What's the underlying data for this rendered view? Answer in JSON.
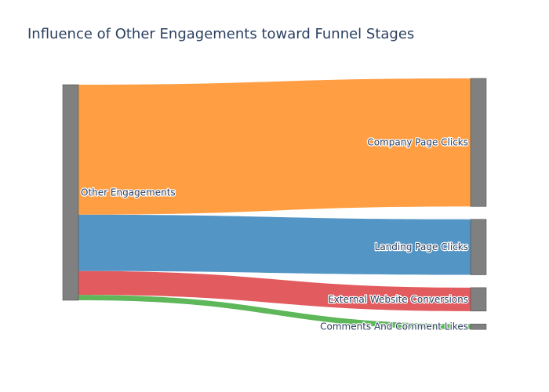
{
  "chart_data": {
    "type": "sankey",
    "title": "Influence of Other Engagements toward Funnel Stages",
    "nodes": [
      {
        "name": "Other Engagements",
        "color": "#808080"
      },
      {
        "name": "Company Page Clicks",
        "color": "#808080"
      },
      {
        "name": "Landing Page Clicks",
        "color": "#808080"
      },
      {
        "name": "External Website Conversions",
        "color": "#808080"
      },
      {
        "name": "Comments And Comment Likes",
        "color": "#808080"
      }
    ],
    "links": [
      {
        "source": "Other Engagements",
        "target": "Company Page Clicks",
        "value": 60,
        "color": "#ff9939"
      },
      {
        "source": "Other Engagements",
        "target": "Landing Page Clicks",
        "value": 26,
        "color": "#4a8fc2"
      },
      {
        "source": "Other Engagements",
        "target": "External Website Conversions",
        "value": 11,
        "color": "#e05255"
      },
      {
        "source": "Other Engagements",
        "target": "Comments And Comment Likes",
        "value": 2.5,
        "color": "#55b350"
      }
    ]
  }
}
